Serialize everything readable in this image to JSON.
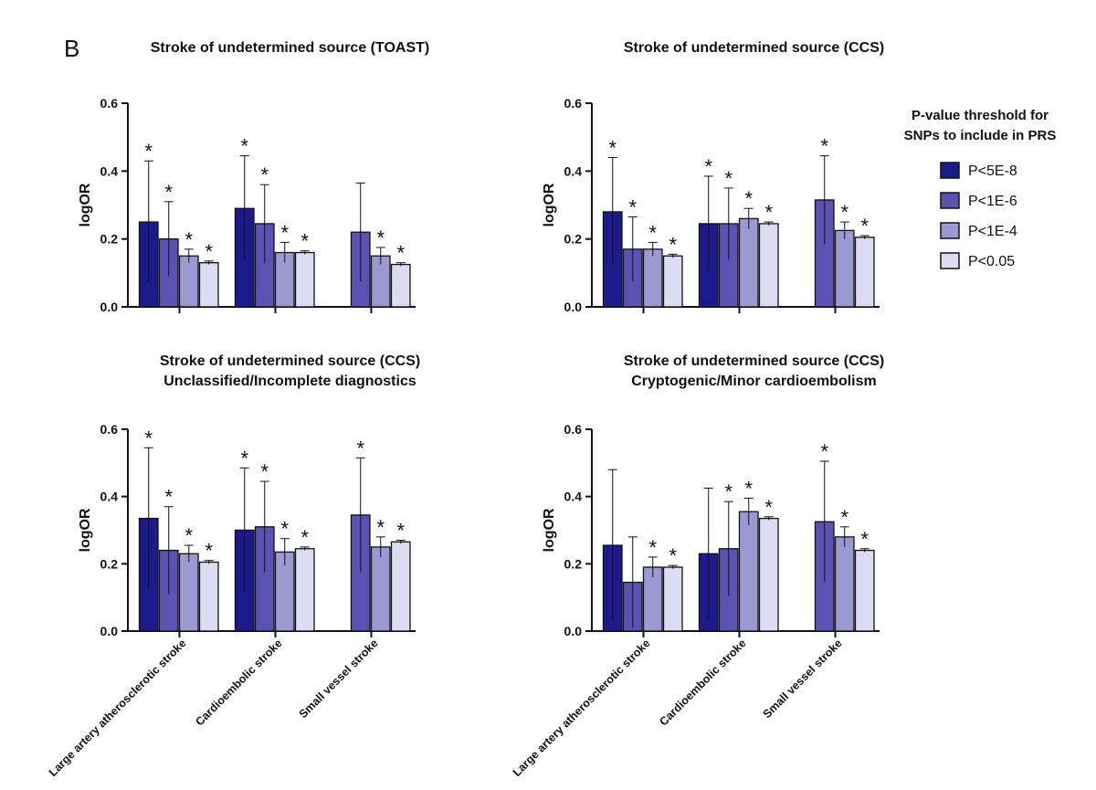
{
  "panel_label": "B",
  "legend": {
    "title": [
      "P-value threshold for",
      "SNPs to include in PRS"
    ],
    "position": "right"
  },
  "chart_data": [
    {
      "type": "bar",
      "title": "Stroke of undetermined source (TOAST)",
      "ylabel": "logOR",
      "ylim": [
        0,
        0.6
      ],
      "yticks": [
        {
          "value": 0,
          "label": "0.0"
        },
        {
          "value": 0.2,
          "label": "0.2"
        },
        {
          "value": 0.4,
          "label": "0.4"
        },
        {
          "value": 0.6,
          "label": "0.6"
        }
      ],
      "categories": [
        null,
        null,
        null
      ],
      "series": [
        {
          "name": "P<5E-8",
          "color": "#1b1b8e",
          "values": [
            0.25,
            0.29,
            null
          ],
          "errors": [
            0.18,
            0.155,
            null
          ],
          "annotations": [
            "*",
            "*",
            null
          ]
        },
        {
          "name": "P<1E-6",
          "color": "#5b53b3",
          "values": [
            0.2,
            0.245,
            0.22
          ],
          "errors": [
            0.11,
            0.115,
            0.145
          ],
          "annotations": [
            "*",
            "*",
            null
          ]
        },
        {
          "name": "P<1E-4",
          "color": "#9b99d2",
          "values": [
            0.15,
            0.16,
            0.15
          ],
          "errors": [
            0.02,
            0.03,
            0.025
          ],
          "annotations": [
            "*",
            "*",
            "*"
          ]
        },
        {
          "name": "P<0.05",
          "color": "#dcdcf2",
          "values": [
            0.13,
            0.16,
            0.125
          ],
          "errors": [
            0.005,
            0.005,
            0.005
          ],
          "annotations": [
            "*",
            "*",
            "*"
          ]
        }
      ]
    },
    {
      "type": "bar",
      "title": "Stroke of undetermined source (CCS)",
      "ylabel": "logOR",
      "ylim": [
        0,
        0.6
      ],
      "yticks": [
        {
          "value": 0,
          "label": "0.0"
        },
        {
          "value": 0.2,
          "label": "0.2"
        },
        {
          "value": 0.4,
          "label": "0.4"
        },
        {
          "value": 0.6,
          "label": "0.6"
        }
      ],
      "categories": [
        null,
        null,
        null
      ],
      "series": [
        {
          "name": "P<5E-8",
          "color": "#1b1b8e",
          "values": [
            0.28,
            0.245,
            null
          ],
          "errors": [
            0.16,
            0.14,
            null
          ],
          "annotations": [
            "*",
            "*",
            null
          ]
        },
        {
          "name": "P<1E-6",
          "color": "#5b53b3",
          "values": [
            0.17,
            0.245,
            0.315
          ],
          "errors": [
            0.095,
            0.105,
            0.13
          ],
          "annotations": [
            "*",
            "*",
            "*"
          ]
        },
        {
          "name": "P<1E-4",
          "color": "#9b99d2",
          "values": [
            0.17,
            0.26,
            0.225
          ],
          "errors": [
            0.02,
            0.03,
            0.025
          ],
          "annotations": [
            "*",
            "*",
            "*"
          ]
        },
        {
          "name": "P<0.05",
          "color": "#dcdcf2",
          "values": [
            0.15,
            0.245,
            0.205
          ],
          "errors": [
            0.005,
            0.005,
            0.005
          ],
          "annotations": [
            "*",
            "*",
            "*"
          ]
        }
      ]
    },
    {
      "type": "bar",
      "title": "Stroke of undetermined source (CCS)",
      "subtitle": "Unclassified/Incomplete diagnostics",
      "ylabel": "logOR",
      "ylim": [
        0,
        0.6
      ],
      "yticks": [
        {
          "value": 0,
          "label": "0.0"
        },
        {
          "value": 0.2,
          "label": "0.2"
        },
        {
          "value": 0.4,
          "label": "0.4"
        },
        {
          "value": 0.6,
          "label": "0.6"
        }
      ],
      "categories": [
        "Large artery atherosclerotic stroke",
        "Cardioembolic stroke",
        "Small vessel stroke"
      ],
      "series": [
        {
          "name": "P<5E-8",
          "color": "#1b1b8e",
          "values": [
            0.335,
            0.3,
            null
          ],
          "errors": [
            0.21,
            0.185,
            null
          ],
          "annotations": [
            "*",
            "*",
            null
          ]
        },
        {
          "name": "P<1E-6",
          "color": "#5b53b3",
          "values": [
            0.24,
            0.31,
            0.345
          ],
          "errors": [
            0.13,
            0.135,
            0.17
          ],
          "annotations": [
            "*",
            "*",
            "*"
          ]
        },
        {
          "name": "P<1E-4",
          "color": "#9b99d2",
          "values": [
            0.23,
            0.235,
            0.25
          ],
          "errors": [
            0.025,
            0.04,
            0.03
          ],
          "annotations": [
            "*",
            "*",
            "*"
          ]
        },
        {
          "name": "P<0.05",
          "color": "#dcdcf2",
          "values": [
            0.205,
            0.245,
            0.265
          ],
          "errors": [
            0.005,
            0.005,
            0.005
          ],
          "annotations": [
            "*",
            "*",
            "*"
          ]
        }
      ]
    },
    {
      "type": "bar",
      "title": "Stroke of undetermined source (CCS)",
      "subtitle": "Cryptogenic/Minor cardioembolism",
      "ylabel": "logOR",
      "ylim": [
        0,
        0.6
      ],
      "yticks": [
        {
          "value": 0,
          "label": "0.0"
        },
        {
          "value": 0.2,
          "label": "0.2"
        },
        {
          "value": 0.4,
          "label": "0.4"
        },
        {
          "value": 0.6,
          "label": "0.6"
        }
      ],
      "categories": [
        "Large artery atherosclerotic stroke",
        "Cardioembolic stroke",
        "Small vessel stroke"
      ],
      "series": [
        {
          "name": "P<5E-8",
          "color": "#1b1b8e",
          "values": [
            0.255,
            0.23,
            null
          ],
          "errors": [
            0.225,
            0.195,
            null
          ],
          "annotations": [
            null,
            null,
            null
          ]
        },
        {
          "name": "P<1E-6",
          "color": "#5b53b3",
          "values": [
            0.145,
            0.245,
            0.325
          ],
          "errors": [
            0.135,
            0.14,
            0.18
          ],
          "annotations": [
            null,
            "*",
            "*"
          ]
        },
        {
          "name": "P<1E-4",
          "color": "#9b99d2",
          "values": [
            0.19,
            0.355,
            0.28
          ],
          "errors": [
            0.03,
            0.04,
            0.03
          ],
          "annotations": [
            "*",
            "*",
            "*"
          ]
        },
        {
          "name": "P<0.05",
          "color": "#dcdcf2",
          "values": [
            0.19,
            0.335,
            0.24
          ],
          "errors": [
            0.005,
            0.005,
            0.005
          ],
          "annotations": [
            "*",
            "*",
            "*"
          ]
        }
      ]
    }
  ]
}
